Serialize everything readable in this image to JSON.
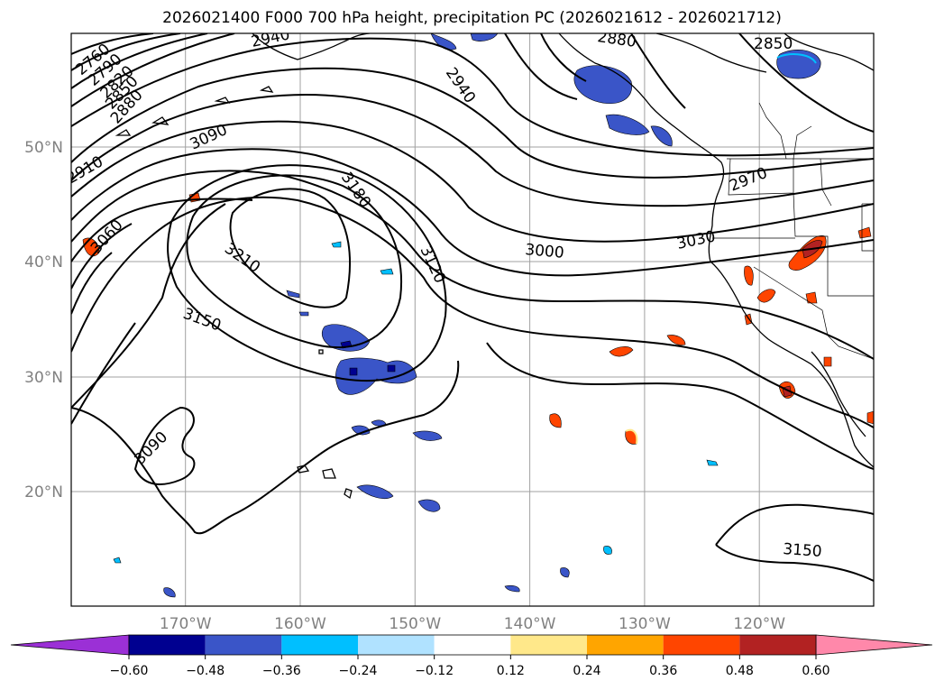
{
  "title": "2026021400 F000 700 hPa height, precipitation PC (2026021612 - 2026021712)",
  "map": {
    "lat_labels": [
      {
        "text": "50°N",
        "lat": 50
      },
      {
        "text": "40°N",
        "lat": 40
      },
      {
        "text": "30°N",
        "lat": 30
      },
      {
        "text": "20°N",
        "lat": 20
      }
    ],
    "lon_labels": [
      {
        "text": "170°W",
        "lon": -170
      },
      {
        "text": "160°W",
        "lon": -160
      },
      {
        "text": "150°W",
        "lon": -150
      },
      {
        "text": "140°W",
        "lon": -140
      },
      {
        "text": "130°W",
        "lon": -130
      },
      {
        "text": "120°W",
        "lon": -120
      }
    ],
    "grid": true,
    "contour_labels": [
      "2760",
      "2790",
      "2820",
      "2850",
      "2880",
      "2910",
      "2940",
      "3090",
      "3060",
      "3180",
      "3210",
      "3150",
      "3120",
      "3000",
      "3030",
      "2970",
      "2850",
      "2880",
      "3090",
      "3150"
    ],
    "colors": {
      "contour": "#000000",
      "grid": "#a0a0a0",
      "coast": "#000000"
    }
  },
  "colorbar": {
    "ticks": [
      "−0.60",
      "−0.48",
      "−0.36",
      "−0.24",
      "−0.12",
      "0.12",
      "0.24",
      "0.36",
      "0.48",
      "0.60"
    ],
    "colors": [
      "#9b30d6",
      "#000090",
      "#3a55c8",
      "#00bfff",
      "#b0e2ff",
      "#ffffff",
      "#ffe88a",
      "#ffa500",
      "#ff4500",
      "#b22222",
      "#ff88aa"
    ]
  }
}
